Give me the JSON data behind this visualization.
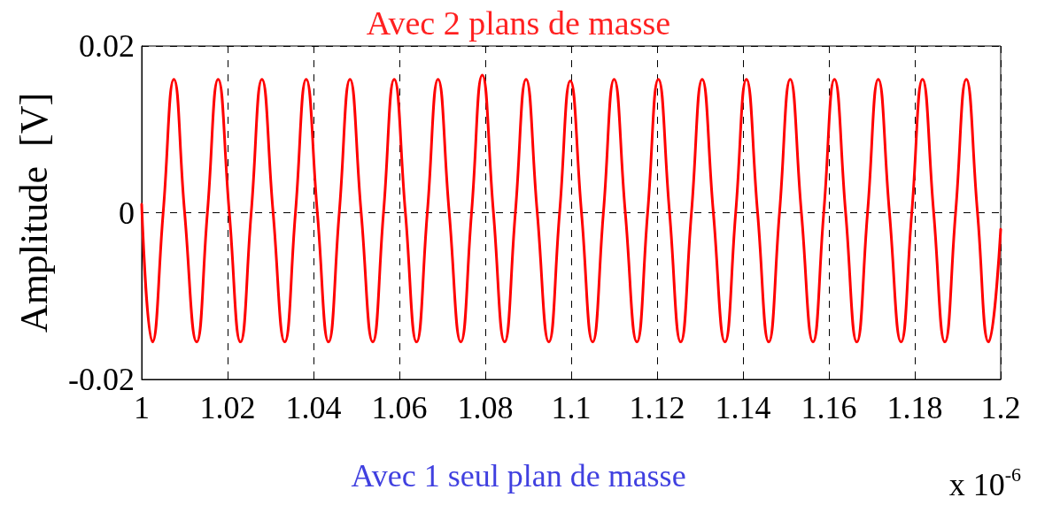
{
  "chart_data": {
    "type": "line",
    "title": "Avec 2 plans de masse",
    "ylabel": "Amplitude  [V]",
    "annotations": [
      "x 10$^{-6}$",
      "Avec 1 seul plan de masse"
    ],
    "xlim": [
      1,
      1.2
    ],
    "xticks": [
      1,
      1.02,
      1.04,
      1.06,
      1.08,
      1.1,
      1.12,
      1.14,
      1.16,
      1.18,
      1.2
    ],
    "ylim": [
      -0.02,
      0.02
    ],
    "yticks": [
      -0.02,
      0,
      0.02
    ],
    "grid": true,
    "marker": "none",
    "line_style": "solid",
    "series": [
      {
        "color": "#ff0000",
        "x": [
          1.0,
          1.0025,
          1.005,
          1.0075,
          1.01,
          1.0128,
          1.0153,
          1.0178,
          1.0204,
          1.023,
          1.0255,
          1.028,
          1.0306,
          1.0333,
          1.0358,
          1.0383,
          1.0409,
          1.0435,
          1.046,
          1.0485,
          1.0511,
          1.0538,
          1.0563,
          1.0588,
          1.0614,
          1.064,
          1.0665,
          1.069,
          1.0716,
          1.0743,
          1.0768,
          1.0793,
          1.0819,
          1.0845,
          1.087,
          1.0895,
          1.0921,
          1.0948,
          1.0973,
          1.0998,
          1.1024,
          1.105,
          1.1075,
          1.11,
          1.1126,
          1.1153,
          1.1178,
          1.1203,
          1.1229,
          1.1255,
          1.128,
          1.1305,
          1.1331,
          1.1358,
          1.1383,
          1.1408,
          1.1434,
          1.146,
          1.1485,
          1.151,
          1.1536,
          1.1563,
          1.1588,
          1.1613,
          1.1639,
          1.1665,
          1.169,
          1.1715,
          1.1741,
          1.1768,
          1.1793,
          1.1818,
          1.1844,
          1.187,
          1.1895,
          1.192,
          1.1946,
          1.1972,
          1.2
        ],
        "values": [
          0.001,
          -0.0155,
          0,
          0.016,
          0,
          -0.0155,
          0,
          0.016,
          0,
          -0.0155,
          0,
          0.016,
          0,
          -0.0155,
          0,
          0.016,
          0,
          -0.0155,
          0,
          0.016,
          0,
          -0.0155,
          0,
          0.016,
          0,
          -0.0155,
          0,
          0.016,
          0,
          -0.0155,
          0,
          0.0165,
          0,
          -0.0155,
          0,
          0.016,
          0,
          -0.0155,
          0,
          0.0158,
          0,
          -0.0155,
          0,
          0.016,
          0,
          -0.0155,
          0,
          0.016,
          0,
          -0.0155,
          0,
          0.016,
          0,
          -0.0155,
          0,
          0.016,
          0,
          -0.0155,
          0,
          0.016,
          0,
          -0.0155,
          0,
          0.016,
          0,
          -0.0155,
          0,
          0.016,
          0,
          -0.0155,
          0,
          0.016,
          0,
          -0.0155,
          0,
          0.016,
          0,
          -0.0155,
          -0.002
        ]
      }
    ]
  }
}
